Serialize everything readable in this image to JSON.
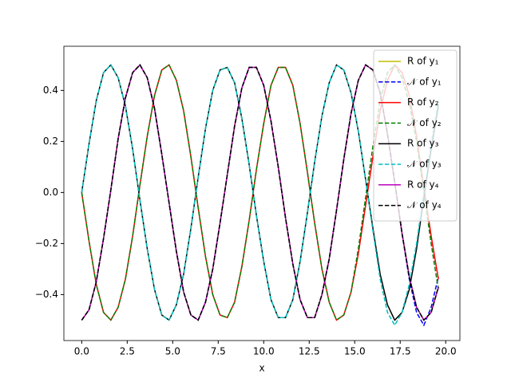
{
  "chart_data": {
    "type": "line",
    "x_label": "x",
    "x": [
      0,
      0.4,
      0.8,
      1.2,
      1.6,
      2.0,
      2.4,
      2.8,
      3.2,
      3.6,
      4.0,
      4.4,
      4.8,
      5.2,
      5.6,
      6.0,
      6.4,
      6.8,
      7.2,
      7.6,
      8.0,
      8.4,
      8.8,
      9.2,
      9.6,
      10.0,
      10.4,
      10.8,
      11.2,
      11.6,
      12.0,
      12.4,
      12.8,
      13.2,
      13.6,
      14.0,
      14.4,
      14.8,
      15.2,
      15.6,
      16.0,
      16.4,
      16.8,
      17.2,
      17.6,
      18.0,
      18.4,
      18.8,
      19.2,
      19.6
    ],
    "series": [
      {
        "name": "R of y₁",
        "color": "#bfbf00",
        "dash": false,
        "values": [
          -0.5,
          -0.46,
          -0.35,
          -0.18,
          0.01,
          0.21,
          0.37,
          0.47,
          0.5,
          0.45,
          0.33,
          0.15,
          -0.04,
          -0.23,
          -0.39,
          -0.48,
          -0.5,
          -0.43,
          -0.3,
          -0.12,
          0.07,
          0.26,
          0.41,
          0.49,
          0.49,
          0.42,
          0.28,
          0.1,
          -0.1,
          -0.28,
          -0.42,
          -0.49,
          -0.49,
          -0.4,
          -0.26,
          -0.07,
          0.13,
          0.31,
          0.44,
          0.5,
          0.48,
          0.39,
          0.23,
          0.04,
          -0.16,
          -0.33,
          -0.45,
          -0.5,
          -0.47,
          -0.37
        ]
      },
      {
        "name": "𝒩 of y₁",
        "color": "#0000ff",
        "dash": true,
        "values": [
          -0.5,
          -0.46,
          -0.35,
          -0.18,
          0.01,
          0.21,
          0.37,
          0.47,
          0.5,
          0.45,
          0.33,
          0.15,
          -0.04,
          -0.23,
          -0.39,
          -0.48,
          -0.5,
          -0.43,
          -0.3,
          -0.12,
          0.07,
          0.26,
          0.41,
          0.49,
          0.49,
          0.42,
          0.28,
          0.1,
          -0.1,
          -0.28,
          -0.42,
          -0.49,
          -0.49,
          -0.4,
          -0.26,
          -0.07,
          0.13,
          0.31,
          0.44,
          0.5,
          0.48,
          0.39,
          0.23,
          0.04,
          -0.16,
          -0.34,
          -0.47,
          -0.52,
          -0.45,
          -0.33
        ]
      },
      {
        "name": "R of y₂",
        "color": "#ff0000",
        "dash": false,
        "values": [
          0,
          -0.19,
          -0.36,
          -0.47,
          -0.5,
          -0.45,
          -0.34,
          -0.17,
          0.03,
          0.22,
          0.38,
          0.48,
          0.5,
          0.44,
          0.32,
          0.14,
          -0.06,
          -0.25,
          -0.4,
          -0.48,
          -0.49,
          -0.43,
          -0.29,
          -0.11,
          0.09,
          0.27,
          0.42,
          0.49,
          0.49,
          0.42,
          0.27,
          0.08,
          -0.12,
          -0.3,
          -0.43,
          -0.5,
          -0.48,
          -0.39,
          -0.24,
          -0.05,
          0.14,
          0.32,
          0.44,
          0.5,
          0.47,
          0.38,
          0.22,
          0.02,
          -0.17,
          -0.34
        ]
      },
      {
        "name": "𝒩 of y₂",
        "color": "#008000",
        "dash": true,
        "values": [
          0,
          -0.19,
          -0.36,
          -0.47,
          -0.5,
          -0.45,
          -0.34,
          -0.17,
          0.03,
          0.22,
          0.38,
          0.48,
          0.5,
          0.44,
          0.32,
          0.14,
          -0.06,
          -0.25,
          -0.4,
          -0.48,
          -0.49,
          -0.43,
          -0.29,
          -0.11,
          0.09,
          0.27,
          0.42,
          0.49,
          0.49,
          0.42,
          0.27,
          0.08,
          -0.12,
          -0.3,
          -0.43,
          -0.5,
          -0.48,
          -0.39,
          -0.22,
          -0.02,
          0.18,
          0.36,
          0.47,
          0.5,
          0.45,
          0.35,
          0.2,
          0.0,
          -0.2,
          -0.38
        ]
      },
      {
        "name": "R of y₃",
        "color": "#000000",
        "dash": false,
        "values": [
          0,
          0.19,
          0.36,
          0.47,
          0.5,
          0.45,
          0.34,
          0.17,
          -0.03,
          -0.22,
          -0.38,
          -0.48,
          -0.5,
          -0.44,
          -0.32,
          -0.14,
          0.06,
          0.25,
          0.4,
          0.48,
          0.49,
          0.43,
          0.29,
          0.11,
          -0.09,
          -0.27,
          -0.42,
          -0.49,
          -0.49,
          -0.42,
          -0.27,
          -0.08,
          0.12,
          0.3,
          0.43,
          0.5,
          0.48,
          0.39,
          0.24,
          0.05,
          -0.14,
          -0.32,
          -0.44,
          -0.5,
          -0.47,
          -0.38,
          -0.22,
          -0.02,
          0.17,
          0.34
        ]
      },
      {
        "name": "𝒩 of y₃",
        "color": "#00bfbf",
        "dash": true,
        "values": [
          0,
          0.19,
          0.36,
          0.47,
          0.5,
          0.45,
          0.34,
          0.17,
          -0.03,
          -0.22,
          -0.38,
          -0.48,
          -0.5,
          -0.44,
          -0.32,
          -0.14,
          0.06,
          0.25,
          0.4,
          0.48,
          0.49,
          0.43,
          0.29,
          0.11,
          -0.09,
          -0.27,
          -0.42,
          -0.49,
          -0.49,
          -0.42,
          -0.27,
          -0.08,
          0.12,
          0.3,
          0.43,
          0.5,
          0.48,
          0.39,
          0.24,
          0.05,
          -0.15,
          -0.34,
          -0.47,
          -0.52,
          -0.47,
          -0.36,
          -0.2,
          0.0,
          0.19,
          0.36
        ]
      },
      {
        "name": "R of y₄",
        "color": "#bf00bf",
        "dash": false,
        "values": [
          -0.5,
          -0.46,
          -0.35,
          -0.18,
          0.01,
          0.21,
          0.37,
          0.47,
          0.5,
          0.45,
          0.33,
          0.15,
          -0.04,
          -0.23,
          -0.39,
          -0.48,
          -0.5,
          -0.43,
          -0.3,
          -0.12,
          0.07,
          0.26,
          0.41,
          0.49,
          0.49,
          0.42,
          0.28,
          0.1,
          -0.1,
          -0.28,
          -0.42,
          -0.49,
          -0.49,
          -0.4,
          -0.26,
          -0.07,
          0.13,
          0.31,
          0.44,
          0.5,
          0.48,
          0.39,
          0.23,
          0.04,
          -0.16,
          -0.33,
          -0.45,
          -0.5,
          -0.47,
          -0.37
        ]
      },
      {
        "name": "𝒩 of y₄",
        "color": "#000000",
        "dash": true,
        "values": [
          -0.5,
          -0.46,
          -0.35,
          -0.18,
          0.01,
          0.21,
          0.37,
          0.47,
          0.5,
          0.45,
          0.33,
          0.15,
          -0.04,
          -0.23,
          -0.39,
          -0.48,
          -0.5,
          -0.43,
          -0.3,
          -0.12,
          0.07,
          0.26,
          0.41,
          0.49,
          0.49,
          0.42,
          0.28,
          0.1,
          -0.1,
          -0.28,
          -0.42,
          -0.49,
          -0.49,
          -0.4,
          -0.26,
          -0.07,
          0.13,
          0.31,
          0.44,
          0.5,
          0.48,
          0.39,
          0.23,
          0.04,
          -0.16,
          -0.33,
          -0.45,
          -0.5,
          -0.47,
          -0.37
        ]
      }
    ],
    "xlim": [
      -0.98,
      20.78
    ],
    "ylim": [
      -0.58,
      0.573
    ],
    "xticks": [
      {
        "value": 0,
        "label": "0.0"
      },
      {
        "value": 2.5,
        "label": "2.5"
      },
      {
        "value": 5,
        "label": "5.0"
      },
      {
        "value": 7.5,
        "label": "7.5"
      },
      {
        "value": 10,
        "label": "10.0"
      },
      {
        "value": 12.5,
        "label": "12.5"
      },
      {
        "value": 15,
        "label": "15.0"
      },
      {
        "value": 17.5,
        "label": "17.5"
      },
      {
        "value": 20,
        "label": "20.0"
      }
    ],
    "yticks": [
      {
        "value": -0.4,
        "label": "−0.4"
      },
      {
        "value": -0.2,
        "label": "−0.2"
      },
      {
        "value": 0,
        "label": "0.0"
      },
      {
        "value": 0.2,
        "label": "0.2"
      },
      {
        "value": 0.4,
        "label": "0.4"
      }
    ],
    "legend": "upper right",
    "grid": false
  }
}
